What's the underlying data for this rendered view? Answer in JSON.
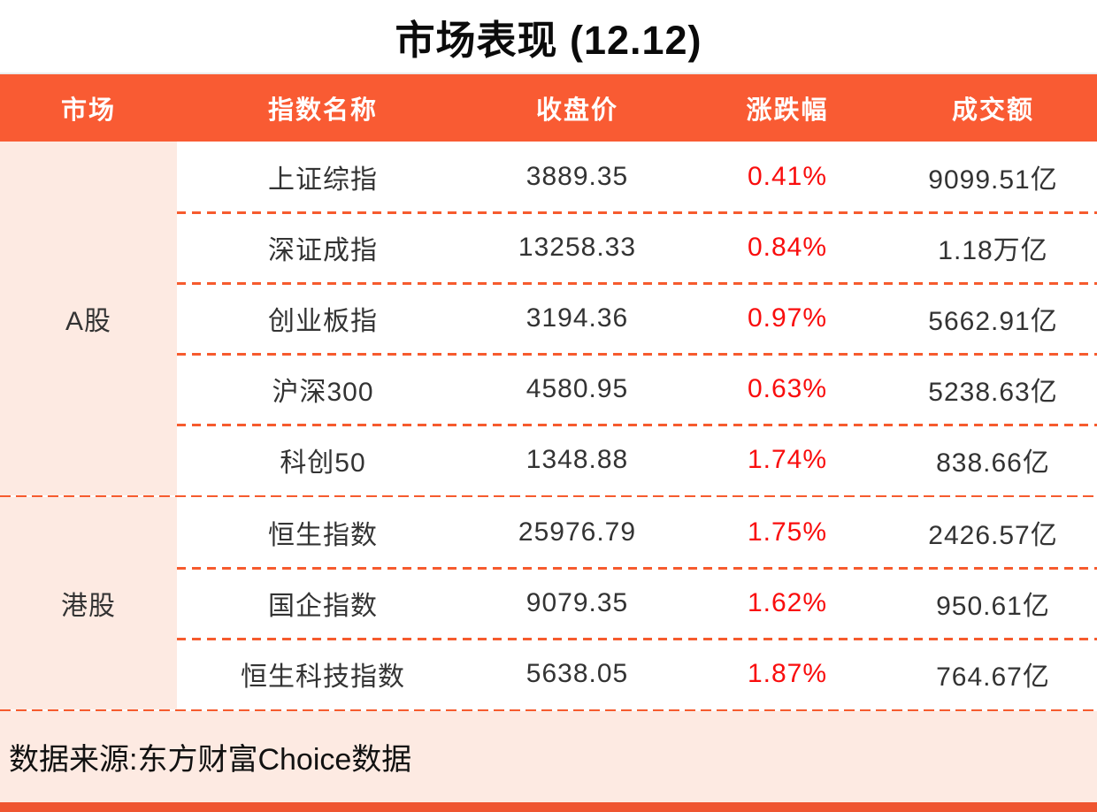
{
  "title": "市场表现 (12.12)",
  "header": {
    "market": "市场",
    "index_name": "指数名称",
    "close": "收盘价",
    "change": "涨跌幅",
    "turnover": "成交额"
  },
  "groups": [
    {
      "market": "A股",
      "rows": [
        {
          "name": "上证综指",
          "close": "3889.35",
          "change": "0.41%",
          "turnover": "9099.51亿"
        },
        {
          "name": "深证成指",
          "close": "13258.33",
          "change": "0.84%",
          "turnover": "1.18万亿"
        },
        {
          "name": "创业板指",
          "close": "3194.36",
          "change": "0.97%",
          "turnover": "5662.91亿"
        },
        {
          "name": "沪深300",
          "close": "4580.95",
          "change": "0.63%",
          "turnover": "5238.63亿"
        },
        {
          "name": "科创50",
          "close": "1348.88",
          "change": "1.74%",
          "turnover": "838.66亿"
        }
      ]
    },
    {
      "market": "港股",
      "rows": [
        {
          "name": "恒生指数",
          "close": "25976.79",
          "change": "1.75%",
          "turnover": "2426.57亿"
        },
        {
          "name": "国企指数",
          "close": "9079.35",
          "change": "1.62%",
          "turnover": "950.61亿"
        },
        {
          "name": "恒生科技指数",
          "close": "5638.05",
          "change": "1.87%",
          "turnover": "764.67亿"
        }
      ]
    }
  ],
  "footer": {
    "source": "数据来源:东方财富Choice数据"
  },
  "colors": {
    "accent_orange": "#f95b33",
    "bottom_bar_orange": "#ef5530",
    "light_pink": "#fdeae2",
    "dash_orange": "#f65b2e",
    "change_red": "#f90d0d",
    "text_dark": "#333333"
  },
  "chart_data": {
    "type": "table",
    "title": "市场表现 (12.12)",
    "columns": [
      "市场",
      "指数名称",
      "收盘价",
      "涨跌幅",
      "成交额"
    ],
    "rows": [
      [
        "A股",
        "上证综指",
        3889.35,
        "0.41%",
        "9099.51亿"
      ],
      [
        "A股",
        "深证成指",
        13258.33,
        "0.84%",
        "1.18万亿"
      ],
      [
        "A股",
        "创业板指",
        3194.36,
        "0.97%",
        "5662.91亿"
      ],
      [
        "A股",
        "沪深300",
        4580.95,
        "0.63%",
        "5238.63亿"
      ],
      [
        "A股",
        "科创50",
        1348.88,
        "1.74%",
        "838.66亿"
      ],
      [
        "港股",
        "恒生指数",
        25976.79,
        "1.75%",
        "2426.57亿"
      ],
      [
        "港股",
        "国企指数",
        9079.35,
        "1.62%",
        "950.61亿"
      ],
      [
        "港股",
        "恒生科技指数",
        5638.05,
        "1.87%",
        "764.67亿"
      ]
    ],
    "source": "数据来源:东方财富Choice数据",
    "notes": "All change percentages rendered in red; dashed orange separators between rows; full-width dashed separators between market groups and above footer."
  }
}
